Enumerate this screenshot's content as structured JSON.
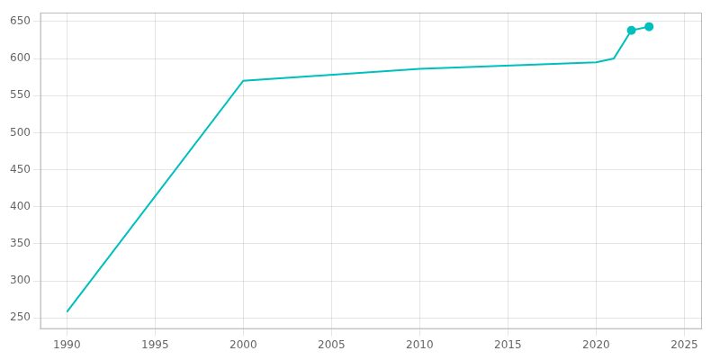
{
  "chart_data": {
    "type": "line",
    "series": [
      {
        "x": [
          1990,
          2000,
          2010,
          2020,
          2021,
          2022,
          2023
        ],
        "values": [
          258,
          570,
          586,
          595,
          600,
          638,
          643
        ],
        "color": "#00BFBF",
        "marker": "none",
        "line_style": "solid"
      },
      {
        "x": [
          2022,
          2023
        ],
        "values": [
          638,
          643
        ],
        "color": "#00BFBF",
        "type": "scatter",
        "marker": "circle"
      }
    ],
    "xlim": [
      1988.5,
      2026
    ],
    "xticks": [
      1990,
      1995,
      2000,
      2005,
      2010,
      2015,
      2020,
      2025
    ],
    "ylim": [
      235,
      662
    ],
    "yticks": [
      250,
      300,
      350,
      400,
      450,
      500,
      550,
      600,
      650
    ],
    "grid": true
  }
}
